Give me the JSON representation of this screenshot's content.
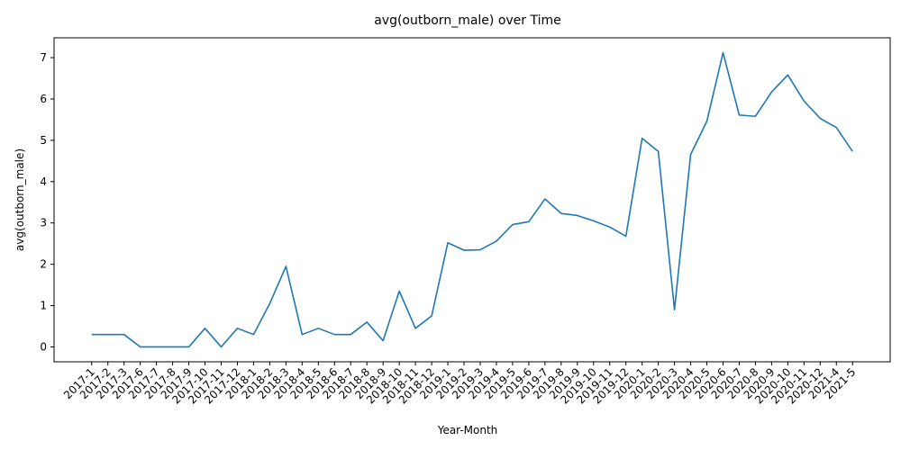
{
  "chart_data": {
    "type": "line",
    "title": "avg(outborn_male) over Time",
    "xlabel": "Year-Month",
    "ylabel": "avg(outborn_male)",
    "ylim": [
      -0.36,
      7.48
    ],
    "yticks": [
      0,
      1,
      2,
      3,
      4,
      5,
      6,
      7
    ],
    "grid": false,
    "legend": "none",
    "line_color": "#1f77b4",
    "categories": [
      "2017-1",
      "2017-2",
      "2017-3",
      "2017-6",
      "2017-7",
      "2017-8",
      "2017-9",
      "2017-10",
      "2017-11",
      "2017-12",
      "2018-1",
      "2018-2",
      "2018-3",
      "2018-4",
      "2018-5",
      "2018-6",
      "2018-7",
      "2018-8",
      "2018-9",
      "2018-10",
      "2018-11",
      "2018-12",
      "2019-1",
      "2019-2",
      "2019-3",
      "2019-4",
      "2019-5",
      "2019-6",
      "2019-7",
      "2019-8",
      "2019-9",
      "2019-10",
      "2019-11",
      "2019-12",
      "2020-1",
      "2020-2",
      "2020-3",
      "2020-4",
      "2020-5",
      "2020-6",
      "2020-7",
      "2020-8",
      "2020-9",
      "2020-10",
      "2020-11",
      "2020-12",
      "2021-4",
      "2021-5"
    ],
    "series": [
      {
        "values": [
          0.3,
          0.3,
          0.3,
          0.0,
          0.0,
          0.0,
          0.0,
          0.45,
          0.0,
          0.45,
          0.3,
          1.05,
          1.95,
          0.3,
          0.45,
          0.3,
          0.3,
          0.6,
          0.15,
          1.35,
          0.45,
          0.75,
          2.52,
          2.34,
          2.35,
          2.56,
          2.96,
          3.03,
          3.58,
          3.23,
          3.18,
          3.05,
          2.9,
          2.68,
          5.05,
          4.73,
          0.9,
          4.66,
          5.46,
          7.12,
          5.61,
          5.58,
          6.17,
          6.58,
          5.95,
          5.53,
          5.31,
          4.73
        ]
      }
    ]
  }
}
